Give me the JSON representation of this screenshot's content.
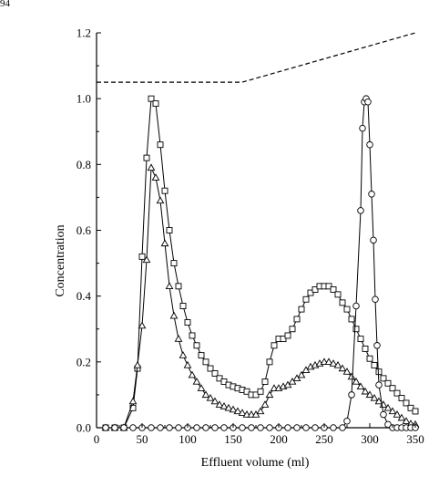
{
  "page_number": "94",
  "chart_data": {
    "type": "line",
    "title": "",
    "xlabel": "Effluent volume (ml)",
    "ylabel": "Concentration",
    "xlim": [
      0,
      350
    ],
    "ylim": [
      0,
      1.2
    ],
    "xticks": [
      0,
      50,
      100,
      150,
      200,
      250,
      300,
      350
    ],
    "yticks": [
      0.0,
      0.2,
      0.4,
      0.6,
      0.8,
      1.0,
      1.2
    ],
    "xtick_labels": [
      "0",
      "50",
      "100",
      "150",
      "200",
      "250",
      "300",
      "350"
    ],
    "ytick_labels": [
      "0.0",
      "0.2",
      "0.4",
      "0.6",
      "0.8",
      "1.0",
      "1.2"
    ],
    "grid": false,
    "legend": "none",
    "series": [
      {
        "marker": "square",
        "x": [
          10,
          20,
          30,
          40,
          45,
          50,
          55,
          60,
          65,
          70,
          75,
          80,
          85,
          90,
          95,
          100,
          105,
          110,
          115,
          120,
          125,
          130,
          135,
          140,
          145,
          150,
          155,
          160,
          165,
          170,
          175,
          180,
          185,
          190,
          195,
          200,
          205,
          210,
          215,
          220,
          225,
          230,
          235,
          240,
          245,
          250,
          255,
          260,
          265,
          270,
          275,
          280,
          285,
          290,
          295,
          300,
          305,
          310,
          315,
          320,
          325,
          330,
          335,
          340,
          345,
          350
        ],
        "y": [
          0,
          0,
          0,
          0.06,
          0.18,
          0.52,
          0.82,
          1.0,
          0.985,
          0.86,
          0.72,
          0.6,
          0.5,
          0.43,
          0.37,
          0.32,
          0.28,
          0.25,
          0.22,
          0.2,
          0.18,
          0.165,
          0.15,
          0.14,
          0.13,
          0.125,
          0.12,
          0.115,
          0.11,
          0.1,
          0.1,
          0.11,
          0.14,
          0.2,
          0.25,
          0.27,
          0.27,
          0.28,
          0.3,
          0.33,
          0.36,
          0.39,
          0.41,
          0.42,
          0.43,
          0.43,
          0.43,
          0.42,
          0.405,
          0.38,
          0.36,
          0.33,
          0.3,
          0.27,
          0.24,
          0.21,
          0.19,
          0.17,
          0.15,
          0.135,
          0.12,
          0.105,
          0.09,
          0.075,
          0.06,
          0.05
        ]
      },
      {
        "marker": "triangle",
        "x": [
          10,
          20,
          30,
          40,
          45,
          50,
          55,
          60,
          65,
          70,
          75,
          80,
          85,
          90,
          95,
          100,
          105,
          110,
          115,
          120,
          125,
          130,
          135,
          140,
          145,
          150,
          155,
          160,
          165,
          170,
          175,
          180,
          185,
          190,
          195,
          200,
          205,
          210,
          215,
          220,
          225,
          230,
          235,
          240,
          245,
          250,
          255,
          260,
          265,
          270,
          275,
          280,
          285,
          290,
          295,
          300,
          305,
          310,
          315,
          320,
          325,
          330,
          335,
          340,
          345,
          350
        ],
        "y": [
          0,
          0,
          0,
          0.08,
          0.19,
          0.31,
          0.51,
          0.79,
          0.76,
          0.69,
          0.56,
          0.43,
          0.34,
          0.27,
          0.22,
          0.19,
          0.16,
          0.14,
          0.12,
          0.1,
          0.09,
          0.08,
          0.07,
          0.065,
          0.06,
          0.055,
          0.05,
          0.045,
          0.04,
          0.04,
          0.04,
          0.05,
          0.07,
          0.1,
          0.12,
          0.12,
          0.125,
          0.13,
          0.14,
          0.15,
          0.16,
          0.175,
          0.185,
          0.19,
          0.195,
          0.2,
          0.2,
          0.195,
          0.19,
          0.18,
          0.17,
          0.155,
          0.14,
          0.125,
          0.11,
          0.1,
          0.09,
          0.08,
          0.07,
          0.06,
          0.05,
          0.04,
          0.03,
          0.02,
          0.012,
          0.01
        ]
      },
      {
        "marker": "circle",
        "x": [
          10,
          20,
          30,
          40,
          50,
          60,
          70,
          80,
          90,
          100,
          110,
          120,
          130,
          140,
          150,
          160,
          170,
          180,
          190,
          200,
          210,
          220,
          230,
          240,
          250,
          260,
          270,
          275,
          280,
          285,
          290,
          292,
          294,
          296,
          298,
          300,
          302,
          304,
          306,
          308,
          310,
          315,
          320,
          325,
          330,
          335,
          340,
          345,
          350
        ],
        "y": [
          0,
          0,
          0,
          0,
          0,
          0,
          0,
          0,
          0,
          0,
          0,
          0,
          0,
          0,
          0,
          0,
          0,
          0,
          0,
          0,
          0,
          0,
          0,
          0,
          0,
          0,
          0,
          0.02,
          0.1,
          0.37,
          0.66,
          0.91,
          0.99,
          1.0,
          0.99,
          0.86,
          0.71,
          0.57,
          0.39,
          0.25,
          0.13,
          0.04,
          0.01,
          0,
          0,
          0,
          0,
          0,
          0
        ]
      },
      {
        "marker": "none",
        "style": "dashed",
        "x": [
          0,
          160,
          350
        ],
        "y": [
          1.05,
          1.05,
          1.2
        ]
      }
    ]
  }
}
